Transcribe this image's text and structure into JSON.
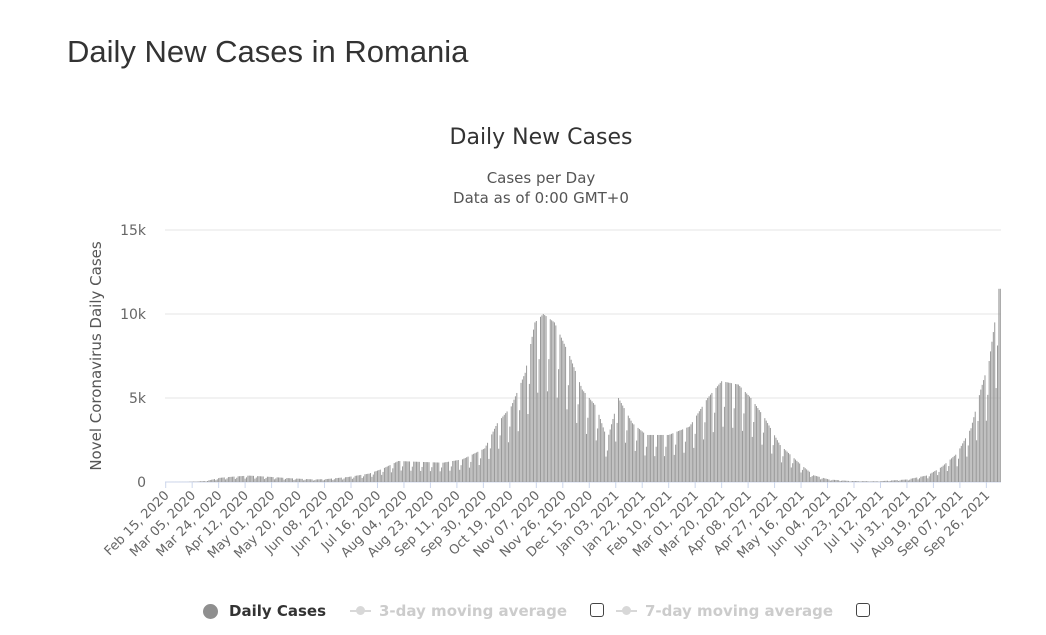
{
  "page": {
    "title": "Daily New Cases in Romania"
  },
  "chart_data": {
    "type": "bar",
    "title": "Daily New Cases",
    "subtitle": [
      "Cases per Day",
      "Data as of 0:00 GMT+0"
    ],
    "xlabel": "",
    "ylabel": "Novel Coronavirus Daily Cases",
    "ylim": [
      0,
      15000
    ],
    "yticks": [
      0,
      5000,
      10000,
      15000
    ],
    "ytick_labels": [
      "0",
      "5k",
      "10k",
      "15k"
    ],
    "xtick_labels": [
      "Feb 15, 2020",
      "Mar 05, 2020",
      "Mar 24, 2020",
      "Apr 12, 2020",
      "May 01, 2020",
      "May 20, 2020",
      "Jun 08, 2020",
      "Jun 27, 2020",
      "Jul 16, 2020",
      "Aug 04, 2020",
      "Aug 23, 2020",
      "Sep 11, 2020",
      "Sep 30, 2020",
      "Oct 19, 2020",
      "Nov 07, 2020",
      "Nov 26, 2020",
      "Dec 15, 2020",
      "Jan 03, 2021",
      "Jan 22, 2021",
      "Feb 10, 2021",
      "Mar 01, 2021",
      "Mar 20, 2021",
      "Apr 08, 2021",
      "Apr 27, 2021",
      "May 16, 2021",
      "Jun 04, 2021",
      "Jun 23, 2021",
      "Jul 12, 2021",
      "Jul 31, 2021",
      "Aug 19, 2021",
      "Sep 07, 2021",
      "Sep 26, 2021"
    ],
    "x_start": "Feb 15, 2020",
    "x_end": "Oct 06, 2021",
    "series": [
      {
        "name": "Daily Cases",
        "color": "#999999",
        "anchors": [
          [
            "Feb 15, 2020",
            0
          ],
          [
            "Mar 01, 2020",
            5
          ],
          [
            "Mar 15, 2020",
            60
          ],
          [
            "Mar 25, 2020",
            250
          ],
          [
            "Apr 05, 2020",
            330
          ],
          [
            "Apr 15, 2020",
            380
          ],
          [
            "May 01, 2020",
            300
          ],
          [
            "May 15, 2020",
            220
          ],
          [
            "Jun 01, 2020",
            150
          ],
          [
            "Jun 10, 2020",
            180
          ],
          [
            "Jun 25, 2020",
            300
          ],
          [
            "Jul 10, 2020",
            500
          ],
          [
            "Jul 20, 2020",
            800
          ],
          [
            "Jul 31, 2020",
            1250
          ],
          [
            "Aug 15, 2020",
            1200
          ],
          [
            "Sep 01, 2020",
            1150
          ],
          [
            "Sep 15, 2020",
            1350
          ],
          [
            "Oct 01, 2020",
            2000
          ],
          [
            "Oct 10, 2020",
            3500
          ],
          [
            "Oct 20, 2020",
            4500
          ],
          [
            "Oct 30, 2020",
            6500
          ],
          [
            "Nov 06, 2020",
            9500
          ],
          [
            "Nov 12, 2020",
            10000
          ],
          [
            "Nov 20, 2020",
            9500
          ],
          [
            "Dec 01, 2020",
            7500
          ],
          [
            "Dec 10, 2020",
            5500
          ],
          [
            "Dec 20, 2020",
            4500
          ],
          [
            "Dec 28, 2020",
            2500
          ],
          [
            "Jan 05, 2021",
            5000
          ],
          [
            "Jan 15, 2021",
            3500
          ],
          [
            "Jan 25, 2021",
            2800
          ],
          [
            "Feb 10, 2021",
            2800
          ],
          [
            "Feb 25, 2021",
            3300
          ],
          [
            "Mar 10, 2021",
            5000
          ],
          [
            "Mar 20, 2021",
            6000
          ],
          [
            "Apr 01, 2021",
            5800
          ],
          [
            "Apr 10, 2021",
            5000
          ],
          [
            "Apr 20, 2021",
            3800
          ],
          [
            "May 01, 2021",
            2200
          ],
          [
            "May 15, 2021",
            1100
          ],
          [
            "May 25, 2021",
            400
          ],
          [
            "Jun 05, 2021",
            150
          ],
          [
            "Jun 20, 2021",
            60
          ],
          [
            "Jul 10, 2021",
            40
          ],
          [
            "Jul 31, 2021",
            150
          ],
          [
            "Aug 15, 2021",
            400
          ],
          [
            "Aug 25, 2021",
            900
          ],
          [
            "Sep 05, 2021",
            1700
          ],
          [
            "Sep 15, 2021",
            3200
          ],
          [
            "Sep 22, 2021",
            5500
          ],
          [
            "Sep 28, 2021",
            7200
          ],
          [
            "Oct 02, 2021",
            9500
          ],
          [
            "Oct 05, 2021",
            11500
          ]
        ]
      }
    ],
    "legend": [
      {
        "label": "Daily Cases",
        "enabled": true
      },
      {
        "label": "3-day moving average",
        "enabled": false
      },
      {
        "label": "7-day moving average",
        "enabled": false
      }
    ],
    "grid": true,
    "legend_position": "bottom"
  }
}
